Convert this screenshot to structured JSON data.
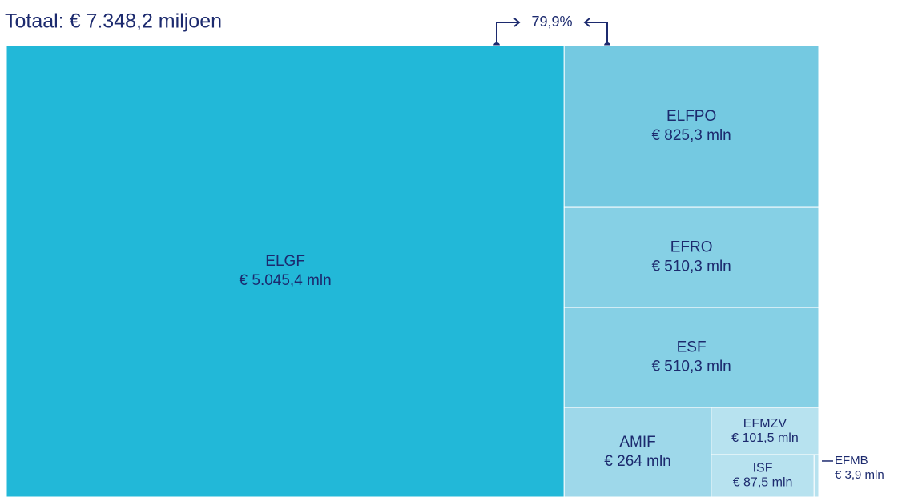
{
  "chart_data": {
    "type": "treemap",
    "title": "Totaal: € 7.348,2 miljoen",
    "categories": [
      "ELGF",
      "ELFPO",
      "EFRO",
      "ESF",
      "AMIF",
      "EFMZV",
      "ISF",
      "EFMB"
    ],
    "values": [
      5045.4,
      825.3,
      510.3,
      510.3,
      264,
      101.5,
      87.5,
      3.9
    ],
    "value_labels": [
      "€ 5.045,4 mln",
      "€ 825,3 mln",
      "€ 510,3 mln",
      "€ 510,3 mln",
      "€ 264 mln",
      "€ 101,5 mln",
      "€ 87,5 mln",
      "€ 3,9 mln"
    ],
    "colors": [
      "#22b8d8",
      "#74c9e1",
      "#86d0e5",
      "#86d0e5",
      "#9ed8ea",
      "#b7e2ef",
      "#b7e2ef",
      "#b7e2ef"
    ],
    "annotation": "79,9%"
  }
}
